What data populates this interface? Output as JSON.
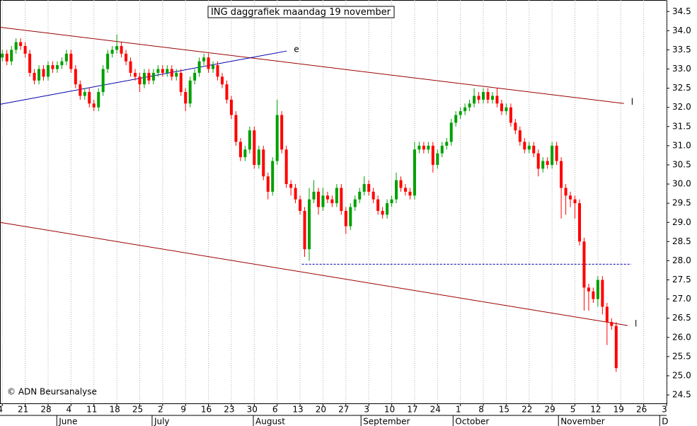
{
  "chart_data": {
    "type": "candlestick",
    "title": "ING daggrafiek maandag 19 november",
    "copyright": "© ADN Beursanalyse",
    "open": [
      33.3,
      33.4,
      33.2,
      33.5,
      33.7,
      33.6,
      33.4,
      32.9,
      32.7,
      33.0,
      32.8,
      33.1,
      33.0,
      33.1,
      33.2,
      33.4,
      33.0,
      32.6,
      32.3,
      32.4,
      32.1,
      32.0,
      32.4,
      33.0,
      33.4,
      33.5,
      33.6,
      33.4,
      33.2,
      32.9,
      32.8,
      32.6,
      32.9,
      32.7,
      32.9,
      33.0,
      32.9,
      33.0,
      32.8,
      32.9,
      32.4,
      32.1,
      32.7,
      32.9,
      33.2,
      33.3,
      33.0,
      33.1,
      32.8,
      32.6,
      32.2,
      31.8,
      31.1,
      30.7,
      30.9,
      31.4,
      30.5,
      30.9,
      30.2,
      29.8,
      30.6,
      31.8,
      30.9,
      30.0,
      29.9,
      29.6,
      29.3,
      28.3,
      29.6,
      29.8,
      29.4,
      29.7,
      29.6,
      29.5,
      29.9,
      29.3,
      28.9,
      29.4,
      29.6,
      29.8,
      30.0,
      29.8,
      29.6,
      29.3,
      29.2,
      29.5,
      29.6,
      30.1,
      29.9,
      29.8,
      29.7,
      30.9,
      31.0,
      30.9,
      31.0,
      30.5,
      30.8,
      31.0,
      31.1,
      31.6,
      31.8,
      31.9,
      32.0,
      32.1,
      32.3,
      32.2,
      32.4,
      32.2,
      32.3,
      32.1,
      31.9,
      32.0,
      31.6,
      31.4,
      31.1,
      30.9,
      31.0,
      30.8,
      30.4,
      30.6,
      30.5,
      31.0,
      30.6,
      29.9,
      29.7,
      29.6,
      29.5,
      28.5,
      27.3,
      27.2,
      27.0,
      27.5,
      26.8,
      26.4,
      26.3
    ],
    "high": [
      33.5,
      33.5,
      33.6,
      33.8,
      33.8,
      33.7,
      33.5,
      33.0,
      33.1,
      33.1,
      33.2,
      33.2,
      33.2,
      33.3,
      33.5,
      33.5,
      33.1,
      32.7,
      32.5,
      32.5,
      32.2,
      32.5,
      33.1,
      33.5,
      33.6,
      33.9,
      33.7,
      33.5,
      33.3,
      33.0,
      32.9,
      33.0,
      33.0,
      33.0,
      33.1,
      33.1,
      33.1,
      33.1,
      33.0,
      33.0,
      32.5,
      32.8,
      33.0,
      33.3,
      33.4,
      33.4,
      33.2,
      33.2,
      32.9,
      32.7,
      32.3,
      31.9,
      31.2,
      31.0,
      31.5,
      31.5,
      31.0,
      31.0,
      30.3,
      30.7,
      32.2,
      31.9,
      31.0,
      30.1,
      30.0,
      29.7,
      29.4,
      29.9,
      30.1,
      29.9,
      29.9,
      29.8,
      29.7,
      30.0,
      30.0,
      29.4,
      29.5,
      29.7,
      29.9,
      30.2,
      30.1,
      29.9,
      29.7,
      29.4,
      29.6,
      29.7,
      30.3,
      30.2,
      30.0,
      29.9,
      31.1,
      31.1,
      31.1,
      31.1,
      31.1,
      30.9,
      31.1,
      31.2,
      31.7,
      31.9,
      32.0,
      32.1,
      32.2,
      32.5,
      32.4,
      32.5,
      32.5,
      32.4,
      32.5,
      32.2,
      32.1,
      32.1,
      31.7,
      31.5,
      31.2,
      31.1,
      31.1,
      30.9,
      30.7,
      30.7,
      31.1,
      31.1,
      30.7,
      30.0,
      29.8,
      29.7,
      29.6,
      28.6,
      27.4,
      27.3,
      27.6,
      27.6,
      26.9,
      26.5,
      26.4
    ],
    "low": [
      33.2,
      33.1,
      33.1,
      33.4,
      33.5,
      33.3,
      32.8,
      32.6,
      32.6,
      32.7,
      32.7,
      32.9,
      32.9,
      33.0,
      33.1,
      32.9,
      32.5,
      32.2,
      32.2,
      32.0,
      31.9,
      31.9,
      32.3,
      32.9,
      33.3,
      33.4,
      33.3,
      33.1,
      32.8,
      32.7,
      32.4,
      32.5,
      32.6,
      32.6,
      32.8,
      32.8,
      32.8,
      32.7,
      32.7,
      32.3,
      31.9,
      32.0,
      32.6,
      32.8,
      33.1,
      32.9,
      32.9,
      32.7,
      32.5,
      32.1,
      31.7,
      31.0,
      30.6,
      30.6,
      30.8,
      30.4,
      30.4,
      30.1,
      29.6,
      29.7,
      30.5,
      30.8,
      29.9,
      29.7,
      29.5,
      29.2,
      28.1,
      28.0,
      29.5,
      29.2,
      29.3,
      29.5,
      29.4,
      29.4,
      29.2,
      28.7,
      28.8,
      29.3,
      29.5,
      29.7,
      29.7,
      29.5,
      29.2,
      29.1,
      29.1,
      29.4,
      29.5,
      29.8,
      29.7,
      29.6,
      29.6,
      30.8,
      30.8,
      30.8,
      30.3,
      30.4,
      30.7,
      30.9,
      31.0,
      31.5,
      31.7,
      31.8,
      31.9,
      32.0,
      32.1,
      32.1,
      32.1,
      32.1,
      32.0,
      31.8,
      31.8,
      31.5,
      31.3,
      31.0,
      30.8,
      30.8,
      30.7,
      30.2,
      30.3,
      30.4,
      30.4,
      30.5,
      29.1,
      29.2,
      29.4,
      29.1,
      28.4,
      26.7,
      26.7,
      26.9,
      26.8,
      26.6,
      25.8,
      26.2,
      25.1
    ],
    "close": [
      33.4,
      33.2,
      33.5,
      33.7,
      33.6,
      33.4,
      32.9,
      32.7,
      33.0,
      32.8,
      33.1,
      33.0,
      33.1,
      33.2,
      33.4,
      33.0,
      32.6,
      32.3,
      32.4,
      32.1,
      32.0,
      32.4,
      33.0,
      33.4,
      33.5,
      33.6,
      33.4,
      33.2,
      32.9,
      32.8,
      32.6,
      32.9,
      32.7,
      32.9,
      33.0,
      32.9,
      33.0,
      32.8,
      32.9,
      32.4,
      32.1,
      32.7,
      32.9,
      33.2,
      33.3,
      33.0,
      33.1,
      32.8,
      32.6,
      32.2,
      31.8,
      31.1,
      30.7,
      30.9,
      31.4,
      30.5,
      30.9,
      30.2,
      29.8,
      30.6,
      31.8,
      30.9,
      30.0,
      29.9,
      29.6,
      29.3,
      28.3,
      29.6,
      29.8,
      29.4,
      29.7,
      29.6,
      29.5,
      29.9,
      29.3,
      28.9,
      29.4,
      29.6,
      29.8,
      30.0,
      29.8,
      29.6,
      29.3,
      29.2,
      29.5,
      29.6,
      30.1,
      29.9,
      29.8,
      29.7,
      30.9,
      31.0,
      30.9,
      31.0,
      30.5,
      30.8,
      31.0,
      31.1,
      31.6,
      31.8,
      31.9,
      32.0,
      32.1,
      32.3,
      32.2,
      32.4,
      32.2,
      32.3,
      32.1,
      31.9,
      32.0,
      31.6,
      31.4,
      31.1,
      30.9,
      31.0,
      30.8,
      30.4,
      30.6,
      30.5,
      31.0,
      30.6,
      29.9,
      29.7,
      29.6,
      29.5,
      28.5,
      27.3,
      27.2,
      27.0,
      27.5,
      26.8,
      26.4,
      26.3,
      25.2
    ],
    "up_color": "#00a000",
    "down_color": "#ff0000",
    "xlim": [
      -0.5,
      145
    ],
    "xticks": [
      {
        "value": 0,
        "label": "4"
      },
      {
        "value": 5,
        "label": "21"
      },
      {
        "value": 10,
        "label": "28"
      },
      {
        "value": 15,
        "label": "4"
      },
      {
        "value": 20,
        "label": "11"
      },
      {
        "value": 25,
        "label": "18"
      },
      {
        "value": 30,
        "label": "25"
      },
      {
        "value": 35,
        "label": "2"
      },
      {
        "value": 40,
        "label": "9"
      },
      {
        "value": 45,
        "label": "16"
      },
      {
        "value": 50,
        "label": "23"
      },
      {
        "value": 55,
        "label": "30"
      },
      {
        "value": 60,
        "label": "6"
      },
      {
        "value": 65,
        "label": "13"
      },
      {
        "value": 70,
        "label": "20"
      },
      {
        "value": 75,
        "label": "27"
      },
      {
        "value": 80,
        "label": "3"
      },
      {
        "value": 85,
        "label": "10"
      },
      {
        "value": 90,
        "label": "17"
      },
      {
        "value": 95,
        "label": "24"
      },
      {
        "value": 100,
        "label": "1"
      },
      {
        "value": 105,
        "label": "8"
      },
      {
        "value": 110,
        "label": "15"
      },
      {
        "value": 115,
        "label": "22"
      },
      {
        "value": 120,
        "label": "29"
      },
      {
        "value": 125,
        "label": "5"
      },
      {
        "value": 130,
        "label": "12"
      },
      {
        "value": 135,
        "label": "19"
      },
      {
        "value": 140,
        "label": "26"
      },
      {
        "value": 145,
        "label": "3"
      }
    ],
    "months": [
      {
        "value": 11.9,
        "label": "June"
      },
      {
        "value": 32.7,
        "label": "July"
      },
      {
        "value": 54.8,
        "label": "August"
      },
      {
        "value": 78.3,
        "label": "September"
      },
      {
        "value": 98.4,
        "label": "October"
      },
      {
        "value": 121.4,
        "label": "November"
      },
      {
        "value": 143.5,
        "label": "D"
      }
    ],
    "ylim": [
      24.28,
      34.8
    ],
    "yticks": [
      24.5,
      {
        "value": 25,
        "label": "25.0"
      },
      25.5,
      {
        "value": 26,
        "label": "26.0"
      },
      26.5,
      {
        "value": 27,
        "label": "27.0"
      },
      27.5,
      {
        "value": 28,
        "label": "28.0"
      },
      28.5,
      {
        "value": 29,
        "label": "29.0"
      },
      29.5,
      {
        "value": 30,
        "label": "30.0"
      },
      30.5,
      {
        "value": 31,
        "label": "31.0"
      },
      31.5,
      {
        "value": 32,
        "label": "32.0"
      },
      32.5,
      {
        "value": 33,
        "label": "33.0"
      },
      33.5,
      {
        "value": 34,
        "label": "34.0"
      },
      34.5
    ],
    "grid": true,
    "trendlines": [
      {
        "color": "#990000",
        "x": [
          -0.5,
          135.7
        ],
        "y": [
          34.09,
          32.1
        ],
        "label": "l"
      },
      {
        "color": "#990000",
        "x": [
          -0.5,
          136.5
        ],
        "y": [
          29.0,
          26.31
        ],
        "label": "l"
      },
      {
        "color": "#0000aa",
        "x": [
          -0.5,
          62.1
        ],
        "y": [
          32.08,
          33.47
        ],
        "label": "e"
      },
      {
        "color": "#0000aa",
        "dash": true,
        "x": [
          65.4,
          137.3
        ],
        "y": [
          27.91,
          27.91
        ]
      }
    ]
  }
}
